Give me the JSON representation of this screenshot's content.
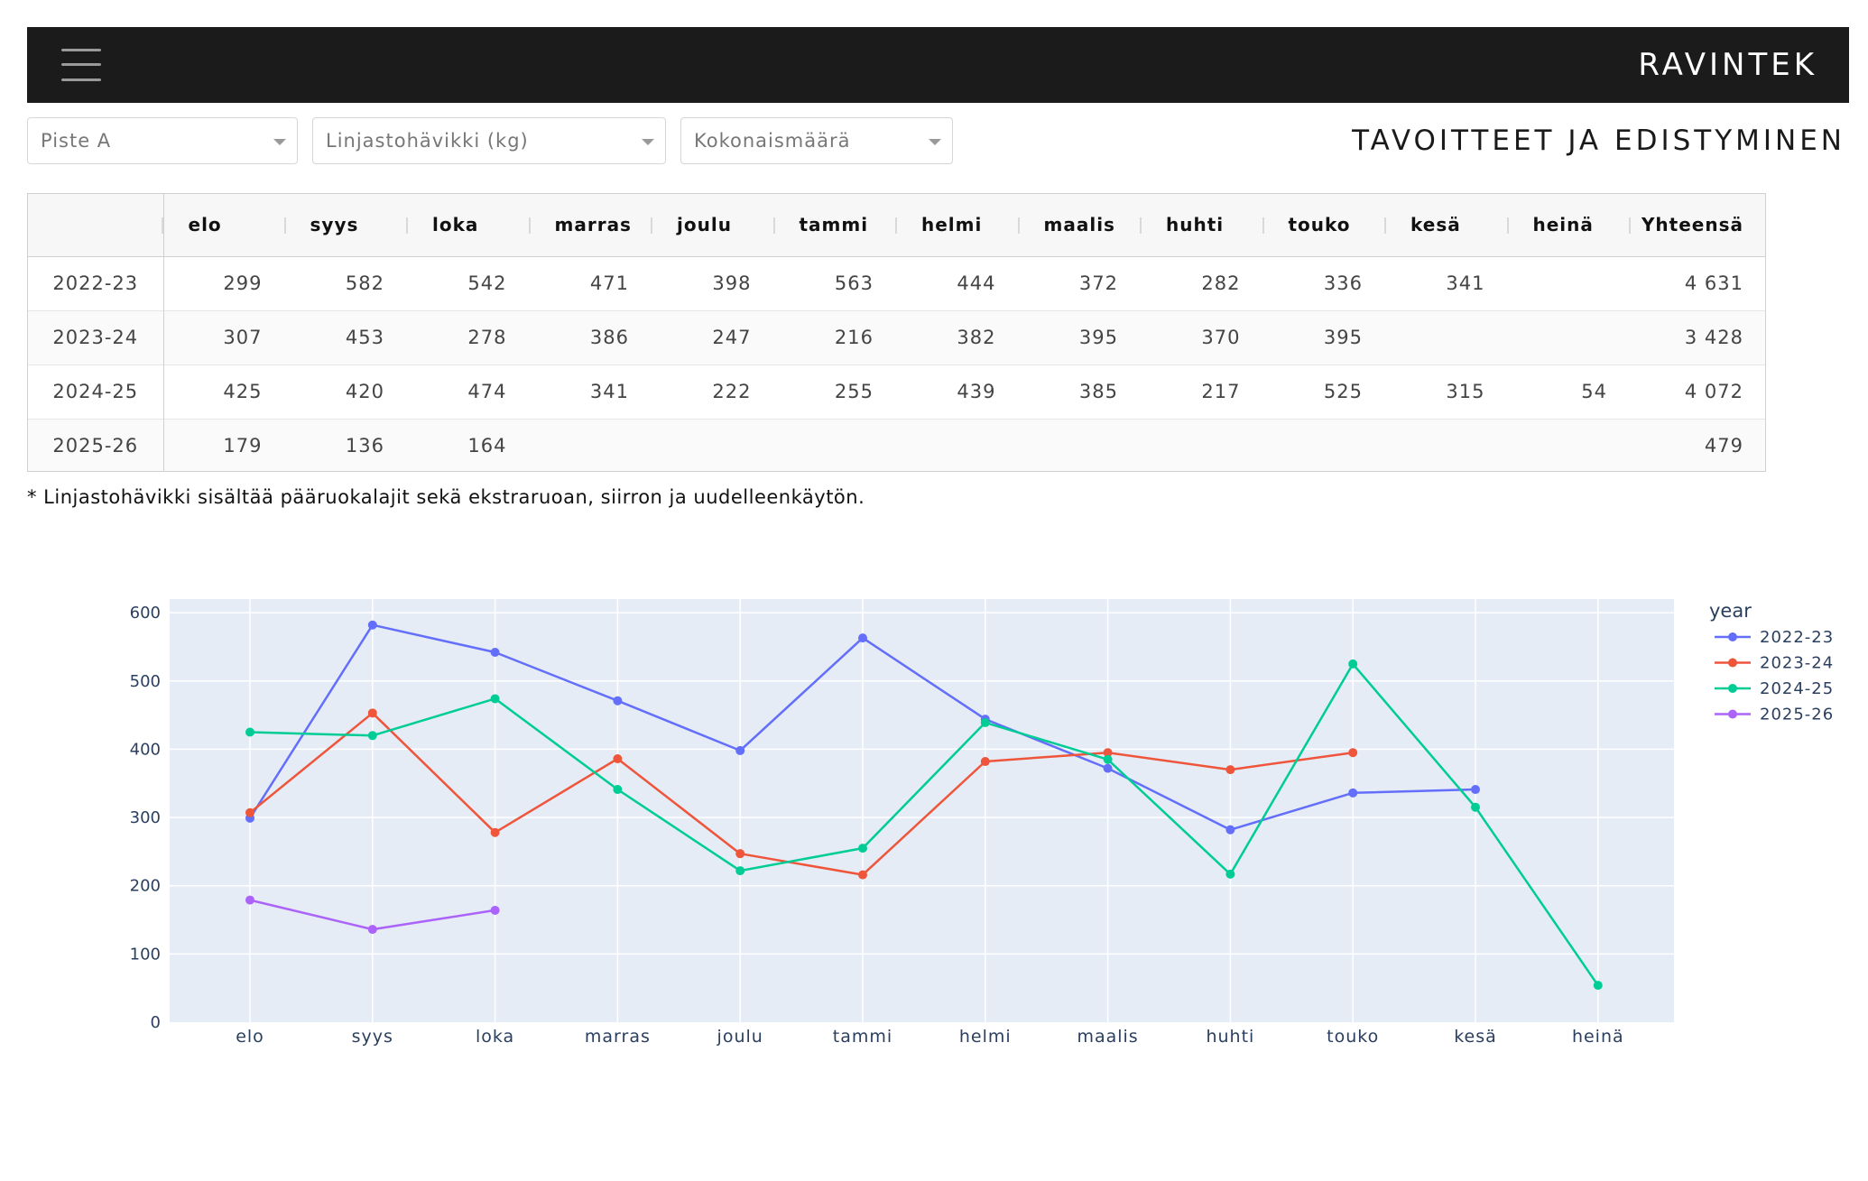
{
  "header": {
    "brand": "RAVINTEK",
    "menu_icon": "hamburger-menu-icon"
  },
  "filters": {
    "location": "Piste A",
    "measure": "Linjastohävikki (kg)",
    "aggregation": "Kokonaismäärä"
  },
  "page_title": "TAVOITTEET JA EDISTYMINEN",
  "table": {
    "columns": [
      "",
      "elo",
      "syys",
      "loka",
      "marras",
      "joulu",
      "tammi",
      "helmi",
      "maalis",
      "huhti",
      "touko",
      "kesä",
      "heinä",
      "Yhteensä"
    ],
    "rows": [
      [
        "2022-23",
        "299",
        "582",
        "542",
        "471",
        "398",
        "563",
        "444",
        "372",
        "282",
        "336",
        "341",
        "",
        "4 631"
      ],
      [
        "2023-24",
        "307",
        "453",
        "278",
        "386",
        "247",
        "216",
        "382",
        "395",
        "370",
        "395",
        "",
        "",
        "3 428"
      ],
      [
        "2024-25",
        "425",
        "420",
        "474",
        "341",
        "222",
        "255",
        "439",
        "385",
        "217",
        "525",
        "315",
        "54",
        "4 072"
      ],
      [
        "2025-26",
        "179",
        "136",
        "164",
        "",
        "",
        "",
        "",
        "",
        "",
        "",
        "",
        "",
        "479"
      ]
    ]
  },
  "footnote": "* Linjastohävikki sisältää pääruokalajit sekä ekstraruoan, siirron ja uudelleenkäytön.",
  "chart_data": {
    "type": "line",
    "categories": [
      "elo",
      "syys",
      "loka",
      "marras",
      "joulu",
      "tammi",
      "helmi",
      "maalis",
      "huhti",
      "touko",
      "kesä",
      "heinä"
    ],
    "ylim": [
      0,
      620
    ],
    "yticks": [
      0,
      100,
      200,
      300,
      400,
      500,
      600
    ],
    "grid": true,
    "legend_title": "year",
    "legend_position": "right",
    "plot_bg": "#e5ecf6",
    "series": [
      {
        "name": "2022-23",
        "color": "#636efa",
        "values": [
          299,
          582,
          542,
          471,
          398,
          563,
          444,
          372,
          282,
          336,
          341,
          null
        ]
      },
      {
        "name": "2023-24",
        "color": "#ef553b",
        "values": [
          307,
          453,
          278,
          386,
          247,
          216,
          382,
          395,
          370,
          395,
          null,
          null
        ]
      },
      {
        "name": "2024-25",
        "color": "#00cc96",
        "values": [
          425,
          420,
          474,
          341,
          222,
          255,
          439,
          385,
          217,
          525,
          315,
          54
        ]
      },
      {
        "name": "2025-26",
        "color": "#ab63fa",
        "values": [
          179,
          136,
          164,
          null,
          null,
          null,
          null,
          null,
          null,
          null,
          null,
          null
        ]
      }
    ]
  }
}
